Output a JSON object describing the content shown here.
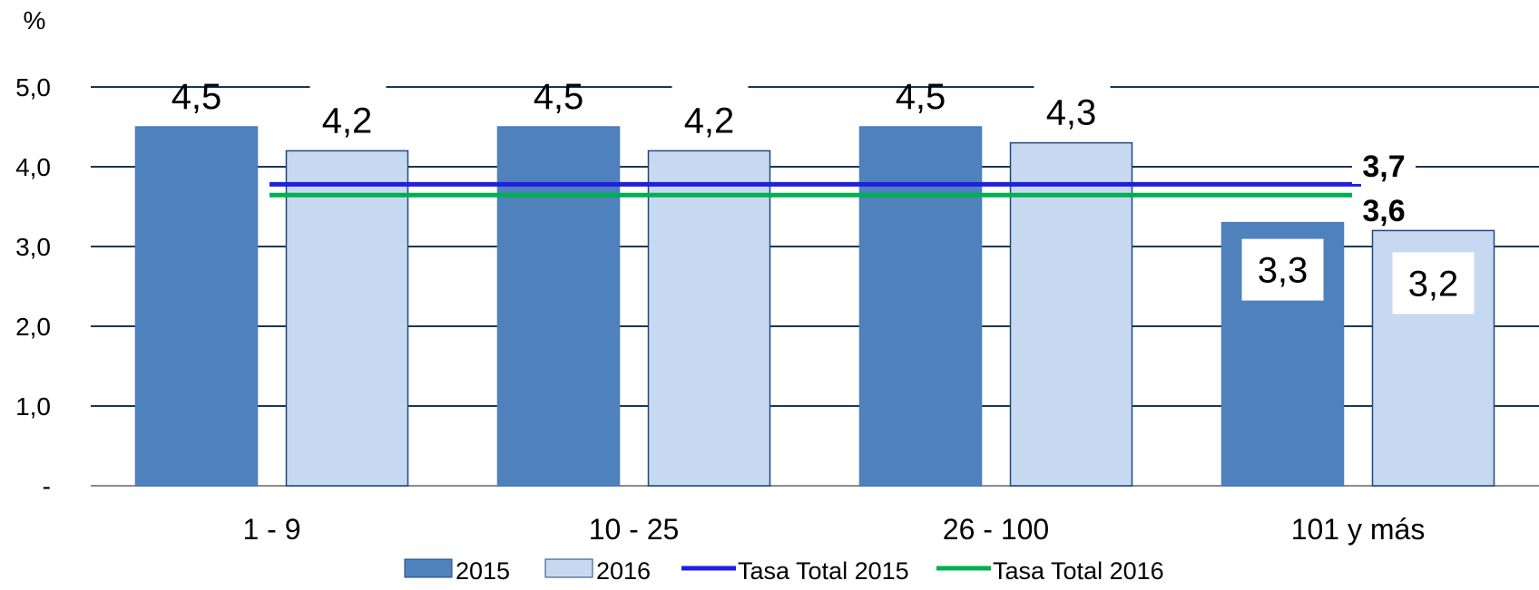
{
  "chart_data": {
    "type": "bar",
    "ylabel": "%",
    "ylim": [
      0,
      5
    ],
    "yticks": [
      {
        "value": 0,
        "label": "-"
      },
      {
        "value": 1,
        "label": "1,0"
      },
      {
        "value": 2,
        "label": "2,0"
      },
      {
        "value": 3,
        "label": "3,0"
      },
      {
        "value": 4,
        "label": "4,0"
      },
      {
        "value": 5,
        "label": "5,0"
      }
    ],
    "categories": [
      "1 - 9",
      "10 - 25",
      "26 - 100",
      "101 y más"
    ],
    "series": [
      {
        "name": "2015",
        "values": [
          4.5,
          4.5,
          4.5,
          3.3
        ],
        "labels": [
          "4,5",
          "4,5",
          "4,5",
          "3,3"
        ],
        "color": "#4F81BD"
      },
      {
        "name": "2016",
        "values": [
          4.2,
          4.2,
          4.3,
          3.2
        ],
        "labels": [
          "4,2",
          "4,2",
          "4,3",
          "3,2"
        ],
        "color": "#C6D9F1"
      }
    ],
    "lines": [
      {
        "name": "Tasa Total 2015",
        "value": 3.7,
        "label": "3,7",
        "color": "#1F1FE0"
      },
      {
        "name": "Tasa Total 2016",
        "value": 3.6,
        "label": "3,6",
        "color": "#00B050"
      }
    ],
    "grid": true,
    "legend": "bottom"
  }
}
